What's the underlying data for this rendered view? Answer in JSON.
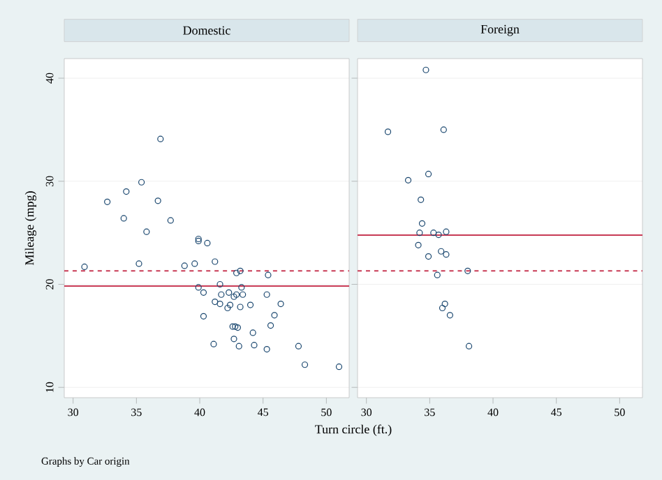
{
  "chart_data": [
    {
      "type": "scatter",
      "title": "Domestic",
      "xlabel": "Turn circle (ft.)",
      "ylabel": "Mileage (mpg)",
      "annotations": [
        "Graphs by Car origin"
      ],
      "xlim": [
        29.3,
        51.8
      ],
      "ylim": [
        9,
        41.9
      ],
      "xticks": [
        30,
        35,
        40,
        45,
        50
      ],
      "yticks": [
        10,
        20,
        30,
        40
      ],
      "grid": "y",
      "marker": "circle",
      "series": [
        {
          "color": "#1a476f",
          "x": [
            30.9,
            32.7,
            34.2,
            35.4,
            34.0,
            36.7,
            36.9,
            35.8,
            37.7,
            35.2,
            38.8,
            39.6,
            39.9,
            39.9,
            40.6,
            41.2,
            42.9,
            43.2,
            45.4,
            39.9,
            40.3,
            41.6,
            41.7,
            42.3,
            42.7,
            42.9,
            43.3,
            43.4,
            45.3,
            41.2,
            41.6,
            42.4,
            42.2,
            43.2,
            44.0,
            46.4,
            45.9,
            40.3,
            42.6,
            42.8,
            43.0,
            45.6,
            44.2,
            42.7,
            41.1,
            43.1,
            44.3,
            45.3,
            47.8,
            48.3,
            51.0
          ],
          "values": [
            21.7,
            28.0,
            29.0,
            29.9,
            26.4,
            28.1,
            34.1,
            25.1,
            26.2,
            22.0,
            21.8,
            22.0,
            24.4,
            24.2,
            24.0,
            22.2,
            21.1,
            21.3,
            20.9,
            19.7,
            19.2,
            20.0,
            19.0,
            19.2,
            18.8,
            19.0,
            19.7,
            19.0,
            19.0,
            18.3,
            18.1,
            18.0,
            17.7,
            17.8,
            18.0,
            18.1,
            17.0,
            16.9,
            15.9,
            15.9,
            15.8,
            16.0,
            15.3,
            14.7,
            14.2,
            14.0,
            14.1,
            13.7,
            14.0,
            12.2,
            12.0
          ]
        }
      ],
      "ref_lines": [
        {
          "axis": "y",
          "value": 19.83,
          "color": "#c83a55",
          "line_style": "solid"
        },
        {
          "axis": "y",
          "value": 21.3,
          "color": "#c83a55",
          "line_style": "dashed"
        }
      ]
    },
    {
      "type": "scatter",
      "title": "Foreign",
      "xlim": [
        29.3,
        51.8
      ],
      "ylim": [
        9,
        41.9
      ],
      "xticks": [
        30,
        35,
        40,
        45,
        50
      ],
      "yticks": [
        10,
        20,
        30,
        40
      ],
      "grid": "y",
      "marker": "circle",
      "tick_labels": "x",
      "series": [
        {
          "color": "#1a476f",
          "x": [
            34.7,
            31.7,
            36.1,
            34.9,
            33.3,
            34.3,
            34.4,
            34.2,
            35.3,
            35.7,
            36.3,
            34.1,
            35.9,
            36.3,
            34.9,
            38.0,
            35.6,
            36.2,
            36.0,
            36.6,
            38.1
          ],
          "values": [
            40.8,
            34.8,
            35.0,
            30.7,
            30.1,
            28.2,
            25.9,
            25.0,
            25.0,
            24.8,
            25.1,
            23.8,
            23.2,
            22.9,
            22.7,
            21.3,
            20.9,
            18.1,
            17.7,
            17.0,
            14.0
          ]
        }
      ],
      "ref_lines": [
        {
          "axis": "y",
          "value": 24.77,
          "color": "#c83a55",
          "line_style": "solid"
        },
        {
          "axis": "y",
          "value": 21.3,
          "color": "#c83a55",
          "line_style": "dashed"
        }
      ]
    }
  ]
}
